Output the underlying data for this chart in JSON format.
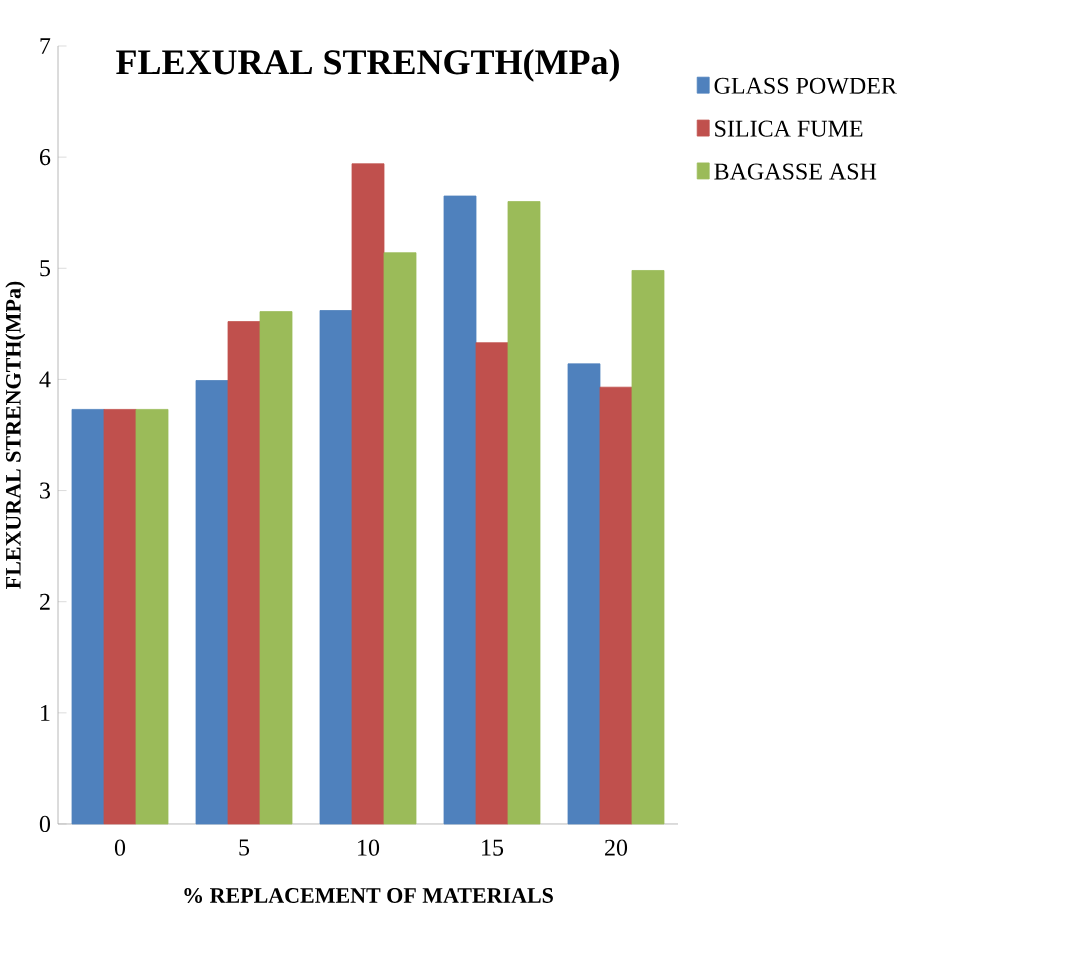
{
  "chart_data": {
    "type": "bar",
    "title": "FLEXURAL STRENGTH(MPa)",
    "xlabel": "% REPLACEMENT OF MATERIALS",
    "ylabel": "FLEXURAL STRENGTH(MPa)",
    "categories": [
      "0",
      "5",
      "10",
      "15",
      "20"
    ],
    "series": [
      {
        "name": "GLASS POWDER",
        "color": "#4f81bd",
        "values": [
          3.73,
          3.99,
          4.62,
          5.65,
          4.14
        ]
      },
      {
        "name": "SILICA FUME",
        "color": "#c0504d",
        "values": [
          3.73,
          4.52,
          5.94,
          4.33,
          3.93
        ]
      },
      {
        "name": "BAGASSE ASH",
        "color": "#9bbb59",
        "values": [
          3.73,
          4.61,
          5.14,
          5.6,
          4.98
        ]
      }
    ],
    "ylim": [
      0,
      7
    ],
    "yticks": [
      0,
      1,
      2,
      3,
      4,
      5,
      6,
      7
    ],
    "grid": false,
    "legend": "top right"
  }
}
